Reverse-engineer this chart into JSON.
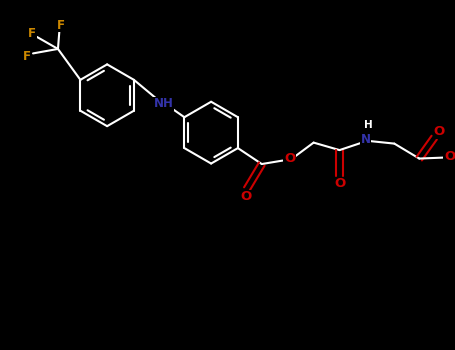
{
  "bg_color": "#000000",
  "bond_color": "#ffffff",
  "nh_color": "#3333aa",
  "o_color": "#cc0000",
  "f_color": "#cc8800",
  "figsize": [
    4.55,
    3.5
  ],
  "dpi": 100,
  "bond_lw": 1.5,
  "font_size_atom": 8.5,
  "xlim": [
    0,
    9.1
  ],
  "ylim": [
    0,
    7.0
  ]
}
